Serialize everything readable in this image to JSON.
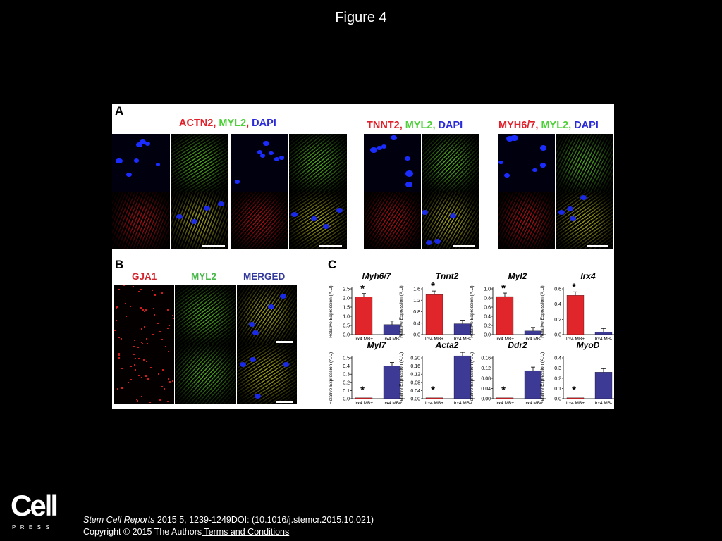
{
  "slide_title": "Figure 4",
  "panels": {
    "A": {
      "label": "A",
      "groups": [
        {
          "parts": [
            {
              "text": "ACTN2",
              "color": "red"
            },
            {
              "text": ", ",
              "color": "red"
            },
            {
              "text": "MYL2",
              "color": "green"
            },
            {
              "text": ", ",
              "color": "red"
            },
            {
              "text": "DAPI",
              "color": "blue"
            }
          ]
        },
        {
          "parts": [
            {
              "text": "TNNT2",
              "color": "red"
            },
            {
              "text": ", ",
              "color": "red"
            },
            {
              "text": "MYL2",
              "color": "green"
            },
            {
              "text": ", ",
              "color": "green"
            },
            {
              "text": "DAPI",
              "color": "blue"
            }
          ]
        },
        {
          "parts": [
            {
              "text": "MYH6/7",
              "color": "red"
            },
            {
              "text": ", ",
              "color": "red"
            },
            {
              "text": "MYL2",
              "color": "green"
            },
            {
              "text": ", ",
              "color": "green"
            },
            {
              "text": "DAPI",
              "color": "blue"
            }
          ]
        }
      ]
    },
    "B": {
      "label": "B",
      "columns": [
        {
          "text": "GJA1",
          "color": "gred"
        },
        {
          "text": "MYL2",
          "color": "ggreen"
        },
        {
          "text": "MERGED",
          "color": "gblue"
        }
      ]
    },
    "C": {
      "label": "C",
      "ylabel": "Relative Expression (A.U)",
      "charts": [
        {
          "title": "Myh6/7",
          "ticks": [
            "0.0",
            "0.5",
            "1.0",
            "1.5",
            "2.0",
            "2.5"
          ]
        },
        {
          "title": "Tnnt2",
          "ticks": [
            "0.0",
            "0.4",
            "0.8",
            "1.2",
            "1.6"
          ]
        },
        {
          "title": "Myl2",
          "ticks": [
            "0.0",
            "0.2",
            "0.4",
            "0.6",
            "0.8",
            "1.0"
          ]
        },
        {
          "title": "Irx4",
          "ticks": [
            "0.0",
            "0.2",
            "0.4",
            "0.6"
          ]
        },
        {
          "title": "Myl7",
          "ticks": [
            "0.0",
            "0.1",
            "0.2",
            "0.3",
            "0.4",
            "0.5"
          ]
        },
        {
          "title": "Acta2",
          "ticks": [
            "0.00",
            "0.04",
            "0.08",
            "0.12",
            "0.16",
            "0.20"
          ]
        },
        {
          "title": "Ddr2",
          "ticks": [
            "0.00",
            "0.04",
            "0.08",
            "0.12",
            "0.16"
          ]
        },
        {
          "title": "MyoD",
          "ticks": [
            "0.0",
            "0.1",
            "0.2",
            "0.3",
            "0.4"
          ]
        }
      ]
    }
  },
  "chart_data": [
    {
      "type": "bar",
      "title": "Myh6/7",
      "ylabel": "Relative Expression (A.U)",
      "categories": [
        "Irx4 MB+",
        "Irx4 MB-"
      ],
      "values": [
        2.05,
        0.55
      ],
      "ylim": [
        0,
        2.5
      ],
      "annotations": [
        "*"
      ],
      "bar_colors": [
        "#e0252b",
        "#3d3a96"
      ]
    },
    {
      "type": "bar",
      "title": "Tnnt2",
      "ylabel": "Relative Expression (A.U)",
      "categories": [
        "Irx4 MB+",
        "Irx4 MB-"
      ],
      "values": [
        1.4,
        0.38
      ],
      "ylim": [
        0,
        1.6
      ],
      "annotations": [
        "*"
      ],
      "bar_colors": [
        "#e0252b",
        "#3d3a96"
      ]
    },
    {
      "type": "bar",
      "title": "Myl2",
      "ylabel": "Relative Expression (A.U)",
      "categories": [
        "Irx4 MB+",
        "Irx4 MB-"
      ],
      "values": [
        0.83,
        0.08
      ],
      "ylim": [
        0,
        1.0
      ],
      "annotations": [
        "*"
      ],
      "bar_colors": [
        "#e0252b",
        "#3d3a96"
      ]
    },
    {
      "type": "bar",
      "title": "Irx4",
      "ylabel": "Relative Expression (A.U)",
      "categories": [
        "Irx4 MB+",
        "Irx4 MB-"
      ],
      "values": [
        0.6,
        0.04
      ],
      "ylim": [
        0,
        0.7
      ],
      "annotations": [
        "*"
      ],
      "bar_colors": [
        "#e0252b",
        "#3d3a96"
      ]
    },
    {
      "type": "bar",
      "title": "Myl7",
      "ylabel": "Relative Expression (A.U)",
      "categories": [
        "Irx4 MB+",
        "Irx4 MB-"
      ],
      "values": [
        0.005,
        0.4
      ],
      "ylim": [
        0,
        0.5
      ],
      "annotations": [
        "*"
      ],
      "bar_colors": [
        "#e0252b",
        "#3d3a96"
      ]
    },
    {
      "type": "bar",
      "title": "Acta2",
      "ylabel": "Relative Expression (A.U)",
      "categories": [
        "Irx4 MB+",
        "Irx4 MB-"
      ],
      "values": [
        0.001,
        0.21
      ],
      "ylim": [
        0,
        0.2
      ],
      "annotations": [
        "*"
      ],
      "bar_colors": [
        "#e0252b",
        "#3d3a96"
      ]
    },
    {
      "type": "bar",
      "title": "Ddr2",
      "ylabel": "Relative Expression (A.U)",
      "categories": [
        "Irx4 MB+",
        "Irx4 MB-"
      ],
      "values": [
        0.001,
        0.11
      ],
      "ylim": [
        0,
        0.16
      ],
      "annotations": [
        "*"
      ],
      "bar_colors": [
        "#e0252b",
        "#3d3a96"
      ]
    },
    {
      "type": "bar",
      "title": "MyoD",
      "ylabel": "Relative Expression (A.U)",
      "categories": [
        "Irx4 MB+",
        "Irx4 MB-"
      ],
      "values": [
        0.004,
        0.26
      ],
      "ylim": [
        0,
        0.4
      ],
      "annotations": [
        "*"
      ],
      "bar_colors": [
        "#e0252b",
        "#3d3a96"
      ]
    }
  ],
  "footer": {
    "journal": "Stem Cell Reports",
    "citation_rest": " 2015 5, 1239-1249DOI: (10.1016/j.stemcr.2015.10.021)",
    "copyright": "Copyright © 2015 The Authors",
    "terms": " Terms and Conditions"
  },
  "logo": {
    "word": "Cell",
    "sub": "PRESS"
  }
}
